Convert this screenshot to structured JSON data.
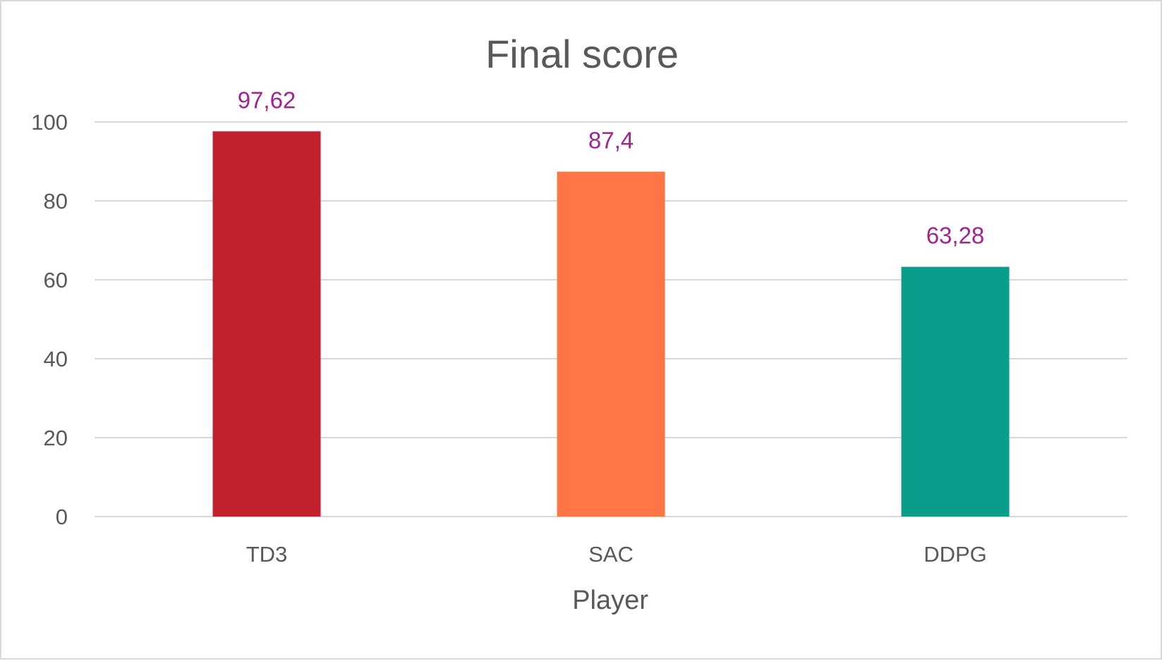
{
  "chart_data": {
    "type": "bar",
    "title": "Final score",
    "xlabel": "Player",
    "ylabel": "",
    "categories": [
      "TD3",
      "SAC",
      "DDPG"
    ],
    "values": [
      97.62,
      87.4,
      63.28
    ],
    "data_labels": [
      "97,62",
      "87,4",
      "63,28"
    ],
    "bar_colors": [
      "#c0212d",
      "#ff7545",
      "#0b9d8c"
    ],
    "data_label_color": "#a3238f",
    "ylim": [
      0,
      100
    ],
    "yticks": [
      0,
      20,
      40,
      60,
      80,
      100
    ],
    "ytick_labels": [
      "0",
      "20",
      "40",
      "60",
      "80",
      "100"
    ],
    "grid": true,
    "legend": "none"
  }
}
